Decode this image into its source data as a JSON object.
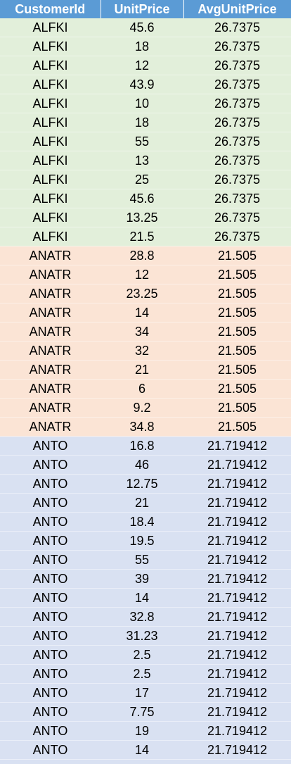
{
  "table": {
    "headers": [
      "CustomerId",
      "UnitPrice",
      "AvgUnitPrice"
    ],
    "group_colors": {
      "ALFKI": "#e2efda",
      "ANATR": "#fbe4d5",
      "ANTO": "#d9e1f2"
    },
    "header_color": "#5b9bd5",
    "rows": [
      [
        "ALFKI",
        "45.6",
        "26.7375"
      ],
      [
        "ALFKI",
        "18",
        "26.7375"
      ],
      [
        "ALFKI",
        "12",
        "26.7375"
      ],
      [
        "ALFKI",
        "43.9",
        "26.7375"
      ],
      [
        "ALFKI",
        "10",
        "26.7375"
      ],
      [
        "ALFKI",
        "18",
        "26.7375"
      ],
      [
        "ALFKI",
        "55",
        "26.7375"
      ],
      [
        "ALFKI",
        "13",
        "26.7375"
      ],
      [
        "ALFKI",
        "25",
        "26.7375"
      ],
      [
        "ALFKI",
        "45.6",
        "26.7375"
      ],
      [
        "ALFKI",
        "13.25",
        "26.7375"
      ],
      [
        "ALFKI",
        "21.5",
        "26.7375"
      ],
      [
        "ANATR",
        "28.8",
        "21.505"
      ],
      [
        "ANATR",
        "12",
        "21.505"
      ],
      [
        "ANATR",
        "23.25",
        "21.505"
      ],
      [
        "ANATR",
        "14",
        "21.505"
      ],
      [
        "ANATR",
        "34",
        "21.505"
      ],
      [
        "ANATR",
        "32",
        "21.505"
      ],
      [
        "ANATR",
        "21",
        "21.505"
      ],
      [
        "ANATR",
        "6",
        "21.505"
      ],
      [
        "ANATR",
        "9.2",
        "21.505"
      ],
      [
        "ANATR",
        "34.8",
        "21.505"
      ],
      [
        "ANTO",
        "16.8",
        "21.719412"
      ],
      [
        "ANTO",
        "46",
        "21.719412"
      ],
      [
        "ANTO",
        "12.75",
        "21.719412"
      ],
      [
        "ANTO",
        "21",
        "21.719412"
      ],
      [
        "ANTO",
        "18.4",
        "21.719412"
      ],
      [
        "ANTO",
        "19.5",
        "21.719412"
      ],
      [
        "ANTO",
        "55",
        "21.719412"
      ],
      [
        "ANTO",
        "39",
        "21.719412"
      ],
      [
        "ANTO",
        "14",
        "21.719412"
      ],
      [
        "ANTO",
        "32.8",
        "21.719412"
      ],
      [
        "ANTO",
        "31.23",
        "21.719412"
      ],
      [
        "ANTO",
        "2.5",
        "21.719412"
      ],
      [
        "ANTO",
        "2.5",
        "21.719412"
      ],
      [
        "ANTO",
        "17",
        "21.719412"
      ],
      [
        "ANTO",
        "7.75",
        "21.719412"
      ],
      [
        "ANTO",
        "19",
        "21.719412"
      ],
      [
        "ANTO",
        "14",
        "21.719412"
      ]
    ]
  }
}
